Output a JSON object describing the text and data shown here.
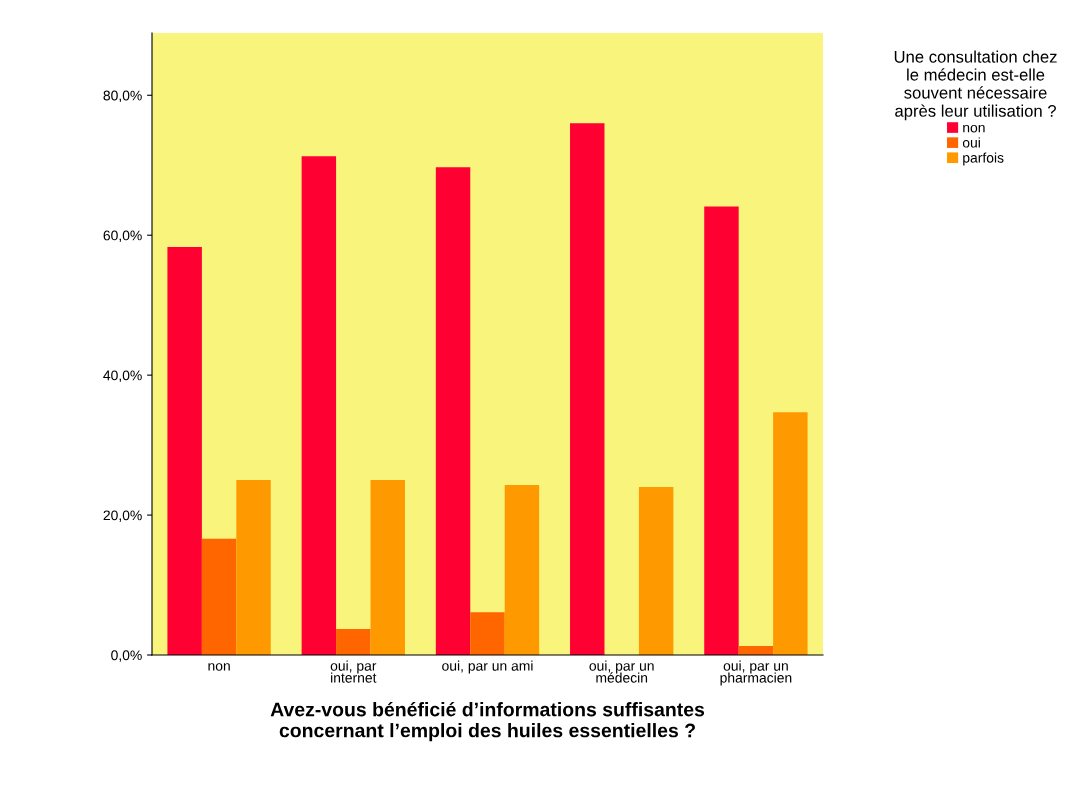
{
  "chart_data": {
    "type": "bar",
    "xlabel": "Avez-vous bénéficié d’informations suffisantes\nconcernant l’emploi des huiles essentielles ?",
    "categories": [
      "non",
      "oui, par\ninternet",
      "oui, par un ami",
      "oui, par un\nmédecin",
      "oui, par un\npharmacien"
    ],
    "series": [
      {
        "name": "non",
        "color": "#ff0033",
        "values": [
          58.3,
          71.3,
          69.7,
          76.0,
          64.1
        ]
      },
      {
        "name": "oui",
        "color": "#ff6600",
        "values": [
          16.6,
          3.7,
          6.1,
          0,
          1.3
        ]
      },
      {
        "name": "parfois",
        "color": "#ff9900",
        "values": [
          25.0,
          25.0,
          24.3,
          24.0,
          34.7
        ]
      }
    ],
    "legend_title": "Une consultation chez\nle médecin est-elle\nsouvent nécessaire\naprès leur utilisation ?",
    "legend": "top right",
    "ylim": [
      0,
      88.9
    ],
    "yticks": [
      {
        "value": 0,
        "label": "0,0%"
      },
      {
        "value": 20,
        "label": "20,0%"
      },
      {
        "value": 40,
        "label": "40,0%"
      },
      {
        "value": 60,
        "label": "60,0%"
      },
      {
        "value": 80,
        "label": "80,0%"
      }
    ],
    "grid": false
  }
}
